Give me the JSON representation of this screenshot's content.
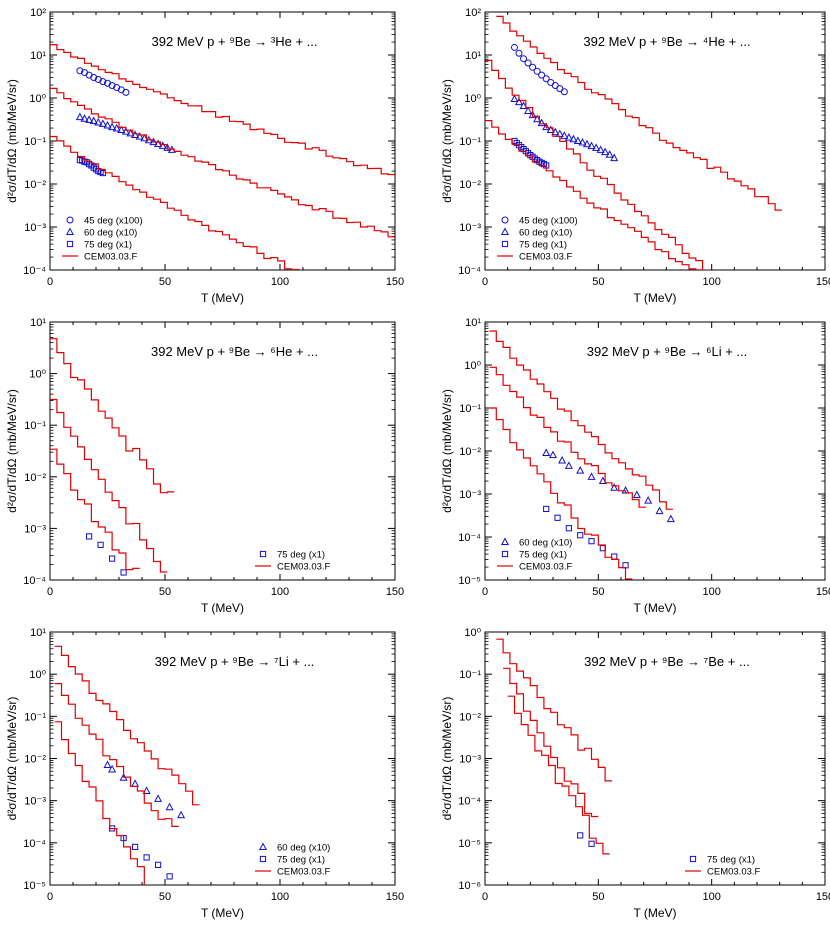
{
  "colors": {
    "model": "#e00000",
    "exp": "#1010d0",
    "axis": "#000000",
    "background": "#ffffff"
  },
  "chart_data": [
    {
      "type": "line",
      "title_prefix": "392 MeV p + ",
      "target_mass": "9",
      "target": "Be",
      "arrow": "→",
      "product_mass": "3",
      "product": "He",
      "title_suffix": " + ...",
      "xlabel": "T (MeV)",
      "ylabel": "d²σ/dT/dΩ (mb/MeV/sr)",
      "xlim": [
        0,
        150
      ],
      "ylim_exp": [
        -4,
        2
      ],
      "x_ticks": [
        0,
        50,
        100,
        150
      ],
      "legend": [
        {
          "label": "45 deg (x100)",
          "marker": "circle"
        },
        {
          "label": "60 deg (x10)",
          "marker": "triangle"
        },
        {
          "label": "75 deg (x1)",
          "marker": "square"
        },
        {
          "label": "CEM03.03.F",
          "marker": "line"
        }
      ],
      "series": [
        {
          "name": "45 deg (x100)",
          "kind": "exp",
          "marker": "circle",
          "x": [
            13,
            15,
            17,
            19,
            21,
            23,
            25,
            27,
            29,
            31,
            33
          ],
          "y": [
            4.3,
            3.9,
            3.4,
            3.0,
            2.7,
            2.4,
            2.2,
            1.95,
            1.75,
            1.55,
            1.35
          ]
        },
        {
          "name": "60 deg (x10)",
          "kind": "exp",
          "marker": "triangle",
          "x": [
            13,
            15,
            17,
            19,
            21,
            23,
            25,
            27,
            29,
            31,
            33,
            35,
            37,
            39,
            41,
            43,
            45,
            47,
            49,
            51,
            53
          ],
          "y": [
            0.36,
            0.33,
            0.31,
            0.29,
            0.27,
            0.25,
            0.23,
            0.21,
            0.195,
            0.18,
            0.165,
            0.15,
            0.138,
            0.126,
            0.115,
            0.104,
            0.094,
            0.085,
            0.077,
            0.069,
            0.062
          ]
        },
        {
          "name": "75 deg (x1)",
          "kind": "exp",
          "marker": "square",
          "x": [
            13,
            14,
            15,
            16,
            17,
            18,
            19,
            20,
            21,
            22,
            23
          ],
          "y": [
            0.036,
            0.035,
            0.033,
            0.032,
            0.029,
            0.027,
            0.024,
            0.022,
            0.02,
            0.019,
            0.018
          ]
        },
        {
          "name": "CEM03.03.F 45 deg",
          "kind": "model",
          "x0": 0,
          "x1": 150,
          "step": 3,
          "y0": 20,
          "y1": 0.015,
          "noise": 0.05
        },
        {
          "name": "CEM03.03.F 60 deg",
          "kind": "model",
          "x0": 0,
          "x1": 150,
          "step": 3,
          "y0": 1.9,
          "y1": 0.00055,
          "noise": 0.05
        },
        {
          "name": "CEM03.03.F 75 deg",
          "kind": "model",
          "x0": 0,
          "x1": 110,
          "step": 3,
          "y0": 0.16,
          "y1": 8e-05,
          "noise": 0.05
        }
      ]
    },
    {
      "type": "line",
      "title_prefix": "392 MeV p + ",
      "target_mass": "9",
      "target": "Be",
      "arrow": "→",
      "product_mass": "4",
      "product": "He",
      "title_suffix": " + ...",
      "xlabel": "T (MeV)",
      "ylabel": "d²σ/dT/dΩ (mb/MeV/sr)",
      "xlim": [
        0,
        150
      ],
      "ylim_exp": [
        -4,
        2
      ],
      "x_ticks": [
        0,
        50,
        100,
        150
      ],
      "legend": [
        {
          "label": "45 deg (x100)",
          "marker": "circle"
        },
        {
          "label": "60 deg (x10)",
          "marker": "triangle"
        },
        {
          "label": "75 deg (x1)",
          "marker": "square"
        },
        {
          "label": "CEM03.03.F",
          "marker": "line"
        }
      ],
      "series": [
        {
          "name": "45 deg (x100)",
          "kind": "exp",
          "marker": "circle",
          "x": [
            13,
            15,
            17,
            19,
            21,
            23,
            25,
            27,
            29,
            31,
            33,
            35
          ],
          "y": [
            15,
            11,
            8.2,
            6.5,
            5.2,
            4.2,
            3.4,
            2.8,
            2.3,
            1.95,
            1.65,
            1.4
          ]
        },
        {
          "name": "60 deg (x10)",
          "kind": "exp",
          "marker": "triangle",
          "x": [
            13,
            15,
            17,
            19,
            21,
            23,
            25,
            27,
            29,
            31,
            33,
            35,
            37,
            39,
            41,
            43,
            45,
            47,
            49,
            51,
            53,
            55,
            57
          ],
          "y": [
            0.95,
            0.8,
            0.65,
            0.5,
            0.4,
            0.32,
            0.26,
            0.21,
            0.18,
            0.16,
            0.145,
            0.132,
            0.12,
            0.11,
            0.1,
            0.092,
            0.084,
            0.076,
            0.069,
            0.062,
            0.055,
            0.048,
            0.04
          ]
        },
        {
          "name": "75 deg (x1)",
          "kind": "exp",
          "marker": "square",
          "x": [
            13,
            14,
            15,
            16,
            17,
            18,
            19,
            20,
            21,
            22,
            23,
            24,
            25,
            26,
            27
          ],
          "y": [
            0.1,
            0.09,
            0.08,
            0.072,
            0.065,
            0.058,
            0.052,
            0.047,
            0.043,
            0.039,
            0.036,
            0.033,
            0.031,
            0.029,
            0.027
          ]
        },
        {
          "name": "CEM03.03.F 45 deg",
          "kind": "model",
          "x0": 5,
          "x1": 130,
          "step": 3,
          "y0": 100,
          "y1": 0.0025,
          "noise": 0.08
        },
        {
          "name": "CEM03.03.F 60 deg",
          "kind": "model",
          "x0": 0,
          "x1": 100,
          "step": 3,
          "y0": 10,
          "y1": 0.0001,
          "noise": 0.06
        },
        {
          "name": "CEM03.03.F 75 deg",
          "kind": "model",
          "x0": 0,
          "x1": 100,
          "step": 3,
          "y0": 0.4,
          "y1": 6e-05,
          "noise": 0.06
        }
      ]
    },
    {
      "type": "line",
      "title_prefix": "392 MeV p + ",
      "target_mass": "9",
      "target": "Be",
      "arrow": "→",
      "product_mass": "6",
      "product": "He",
      "title_suffix": " + ...",
      "xlabel": "T (MeV)",
      "ylabel": "d²σ/dT/dΩ (mb/MeV/sr)",
      "xlim": [
        0,
        150
      ],
      "ylim_exp": [
        -4,
        1
      ],
      "x_ticks": [
        0,
        50,
        100,
        150
      ],
      "legend": [
        {
          "label": "75 deg (x1)",
          "marker": "square"
        },
        {
          "label": "CEM03.03.F",
          "marker": "line"
        }
      ],
      "series": [
        {
          "name": "75 deg (x1)",
          "kind": "exp",
          "marker": "square",
          "x": [
            17,
            22,
            27,
            32
          ],
          "y": [
            0.0007,
            0.00048,
            0.00026,
            0.00014
          ]
        },
        {
          "name": "CEM03.03.F 45 deg",
          "kind": "model",
          "x0": 0,
          "x1": 55,
          "step": 3,
          "y0": 6,
          "y1": 0.004,
          "noise": 0.12
        },
        {
          "name": "CEM03.03.F 60 deg",
          "kind": "model",
          "x0": 0,
          "x1": 50,
          "step": 3,
          "y0": 0.5,
          "y1": 0.00015,
          "noise": 0.12
        },
        {
          "name": "CEM03.03.F 75 deg",
          "kind": "model",
          "x0": 0,
          "x1": 40,
          "step": 3,
          "y0": 0.05,
          "y1": 0.0001,
          "noise": 0.12
        }
      ]
    },
    {
      "type": "line",
      "title_prefix": "392 MeV p + ",
      "target_mass": "9",
      "target": "Be",
      "arrow": "→",
      "product_mass": "6",
      "product": "Li",
      "title_suffix": " + ...",
      "xlabel": "T (MeV)",
      "ylabel": "d²σ/dT/dΩ (mb/MeV/sr)",
      "xlim": [
        0,
        150
      ],
      "ylim_exp": [
        -5,
        1
      ],
      "x_ticks": [
        0,
        50,
        100,
        150
      ],
      "legend": [
        {
          "label": "60 deg (x10)",
          "marker": "triangle"
        },
        {
          "label": "75 deg (x1)",
          "marker": "square"
        },
        {
          "label": "CEM03.03.F",
          "marker": "line"
        }
      ],
      "series": [
        {
          "name": "60 deg (x10)",
          "kind": "exp",
          "marker": "triangle",
          "x": [
            27,
            30,
            34,
            37,
            42,
            47,
            52,
            57,
            62,
            67,
            72,
            77,
            82
          ],
          "y": [
            0.009,
            0.008,
            0.006,
            0.0045,
            0.0035,
            0.0025,
            0.002,
            0.0014,
            0.0012,
            0.00095,
            0.0007,
            0.0004,
            0.00026
          ]
        },
        {
          "name": "75 deg (x1)",
          "kind": "exp",
          "marker": "square",
          "x": [
            27,
            32,
            37,
            42,
            47,
            52,
            57,
            62
          ],
          "y": [
            0.00045,
            0.00028,
            0.00016,
            0.00011,
            8e-05,
            5.5e-05,
            3.5e-05,
            2.2e-05
          ]
        },
        {
          "name": "CEM03.03.F 45 deg",
          "kind": "model",
          "x0": 2,
          "x1": 84,
          "step": 3,
          "y0": 9,
          "y1": 0.0005,
          "noise": 0.1
        },
        {
          "name": "CEM03.03.F 60 deg",
          "kind": "model",
          "x0": 2,
          "x1": 70,
          "step": 3,
          "y0": 1.2,
          "y1": 0.0004,
          "noise": 0.1
        },
        {
          "name": "CEM03.03.F 75 deg",
          "kind": "model",
          "x0": 2,
          "x1": 65,
          "step": 3,
          "y0": 0.14,
          "y1": 1e-05,
          "noise": 0.1
        }
      ]
    },
    {
      "type": "line",
      "title_prefix": "392 MeV p + ",
      "target_mass": "9",
      "target": "Be",
      "arrow": "→",
      "product_mass": "7",
      "product": "Li",
      "title_suffix": " + ...",
      "xlabel": "T (MeV)",
      "ylabel": "d²σ/dT/dΩ (mb/MeV/sr)",
      "xlim": [
        0,
        150
      ],
      "ylim_exp": [
        -5,
        1
      ],
      "x_ticks": [
        0,
        50,
        100,
        150
      ],
      "legend": [
        {
          "label": "60 deg (x10)",
          "marker": "triangle"
        },
        {
          "label": "75 deg (x1)",
          "marker": "square"
        },
        {
          "label": "CEM03.03.F",
          "marker": "line"
        }
      ],
      "series": [
        {
          "name": "60 deg (x10)",
          "kind": "exp",
          "marker": "triangle",
          "x": [
            25,
            27,
            32,
            37,
            42,
            47,
            52,
            57
          ],
          "y": [
            0.007,
            0.0055,
            0.0035,
            0.0025,
            0.0017,
            0.0011,
            0.0007,
            0.00045
          ]
        },
        {
          "name": "75 deg (x1)",
          "kind": "exp",
          "marker": "square",
          "x": [
            27,
            32,
            37,
            42,
            47,
            52
          ],
          "y": [
            0.00022,
            0.00013,
            8e-05,
            4.5e-05,
            3e-05,
            1.6e-05
          ]
        },
        {
          "name": "CEM03.03.F 45 deg",
          "kind": "model",
          "x0": 2,
          "x1": 64,
          "step": 3,
          "y0": 7,
          "y1": 0.0009,
          "noise": 0.1
        },
        {
          "name": "CEM03.03.F 60 deg",
          "kind": "model",
          "x0": 2,
          "x1": 55,
          "step": 3,
          "y0": 0.9,
          "y1": 0.00015,
          "noise": 0.12
        },
        {
          "name": "CEM03.03.F 75 deg",
          "kind": "model",
          "x0": 2,
          "x1": 45,
          "step": 3,
          "y0": 0.12,
          "y1": 1e-05,
          "noise": 0.12
        }
      ]
    },
    {
      "type": "line",
      "title_prefix": "392 MeV p + ",
      "target_mass": "9",
      "target": "Be",
      "arrow": "→",
      "product_mass": "7",
      "product": "Be",
      "title_suffix": " + ...",
      "xlabel": "T (MeV)",
      "ylabel": "d²σ/dT/dΩ (mb/MeV/sr)",
      "xlim": [
        0,
        150
      ],
      "ylim_exp": [
        -6,
        0
      ],
      "x_ticks": [
        0,
        50,
        100,
        150
      ],
      "legend": [
        {
          "label": "75 deg (x1)",
          "marker": "square"
        },
        {
          "label": "CEM03.03.F",
          "marker": "line"
        }
      ],
      "series": [
        {
          "name": "75 deg (x1)",
          "kind": "exp",
          "marker": "square",
          "x": [
            42,
            47
          ],
          "y": [
            1.5e-05,
            9.5e-06
          ]
        },
        {
          "name": "CEM03.03.F 45 deg",
          "kind": "model",
          "x0": 5,
          "x1": 55,
          "step": 3,
          "y0": 0.9,
          "y1": 0.00035,
          "noise": 0.12
        },
        {
          "name": "CEM03.03.F 60 deg",
          "kind": "model",
          "x0": 8,
          "x1": 50,
          "step": 3,
          "y0": 0.25,
          "y1": 3e-05,
          "noise": 0.12
        },
        {
          "name": "CEM03.03.F 75 deg",
          "kind": "model",
          "x0": 10,
          "x1": 55,
          "step": 3,
          "y0": 0.05,
          "y1": 5e-06,
          "noise": 0.15
        }
      ]
    }
  ]
}
